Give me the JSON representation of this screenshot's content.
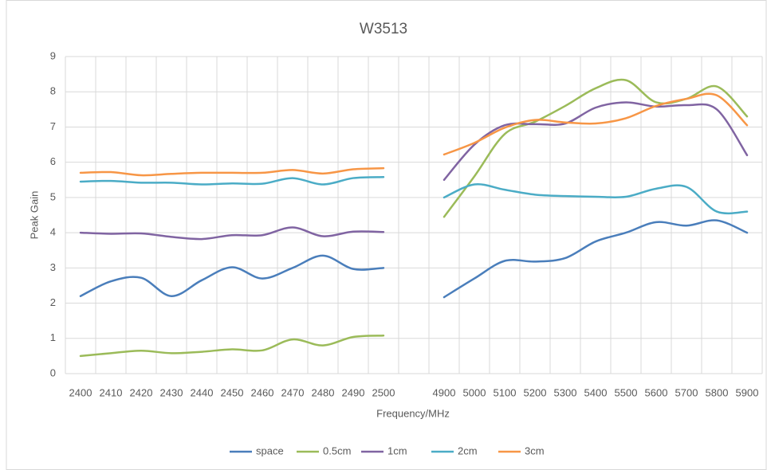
{
  "chart_data": {
    "type": "line",
    "title": "W3513",
    "x_label": "Frequency/MHz",
    "y_label": "Peak Gain",
    "categories": [
      "2400",
      "2410",
      "2420",
      "2430",
      "2440",
      "2450",
      "2460",
      "2470",
      "2480",
      "2490",
      "2500",
      null,
      "4900",
      "5000",
      "5100",
      "5200",
      "5300",
      "5400",
      "5500",
      "5600",
      "5700",
      "5800",
      "5900"
    ],
    "series": [
      {
        "name": "space",
        "color": "#4a7ebb",
        "values": [
          2.2,
          2.62,
          2.72,
          2.2,
          2.65,
          3.02,
          2.7,
          3.0,
          3.35,
          2.97,
          3.0,
          null,
          2.17,
          2.7,
          3.2,
          3.18,
          3.28,
          3.75,
          4.0,
          4.3,
          4.2,
          4.35,
          4.0
        ]
      },
      {
        "name": "0.5cm",
        "color": "#9bbb59",
        "values": [
          0.5,
          0.58,
          0.65,
          0.58,
          0.62,
          0.69,
          0.66,
          0.97,
          0.8,
          1.04,
          1.08,
          null,
          4.45,
          5.6,
          6.8,
          7.15,
          7.6,
          8.1,
          8.33,
          7.7,
          7.8,
          8.15,
          7.3
        ]
      },
      {
        "name": "1cm",
        "color": "#8064a2",
        "values": [
          4.0,
          3.97,
          3.98,
          3.88,
          3.82,
          3.93,
          3.93,
          4.15,
          3.9,
          4.03,
          4.02,
          null,
          5.5,
          6.5,
          7.05,
          7.08,
          7.1,
          7.55,
          7.7,
          7.58,
          7.62,
          7.5,
          6.2
        ]
      },
      {
        "name": "2cm",
        "color": "#4bacc6",
        "values": [
          5.45,
          5.47,
          5.42,
          5.42,
          5.37,
          5.4,
          5.39,
          5.55,
          5.37,
          5.55,
          5.58,
          null,
          5.0,
          5.37,
          5.22,
          5.08,
          5.04,
          5.02,
          5.02,
          5.25,
          5.3,
          4.6,
          4.6
        ]
      },
      {
        "name": "3cm",
        "color": "#f79646",
        "values": [
          5.7,
          5.72,
          5.63,
          5.67,
          5.7,
          5.7,
          5.7,
          5.78,
          5.68,
          5.8,
          5.83,
          null,
          6.22,
          6.55,
          6.98,
          7.2,
          7.13,
          7.1,
          7.25,
          7.6,
          7.8,
          7.9,
          7.05
        ]
      }
    ],
    "ylim": [
      0,
      9
    ],
    "yticks": [
      0,
      1,
      2,
      3,
      4,
      5,
      6,
      7,
      8,
      9
    ],
    "grid": true,
    "smooth": true,
    "legend": "bottom"
  }
}
